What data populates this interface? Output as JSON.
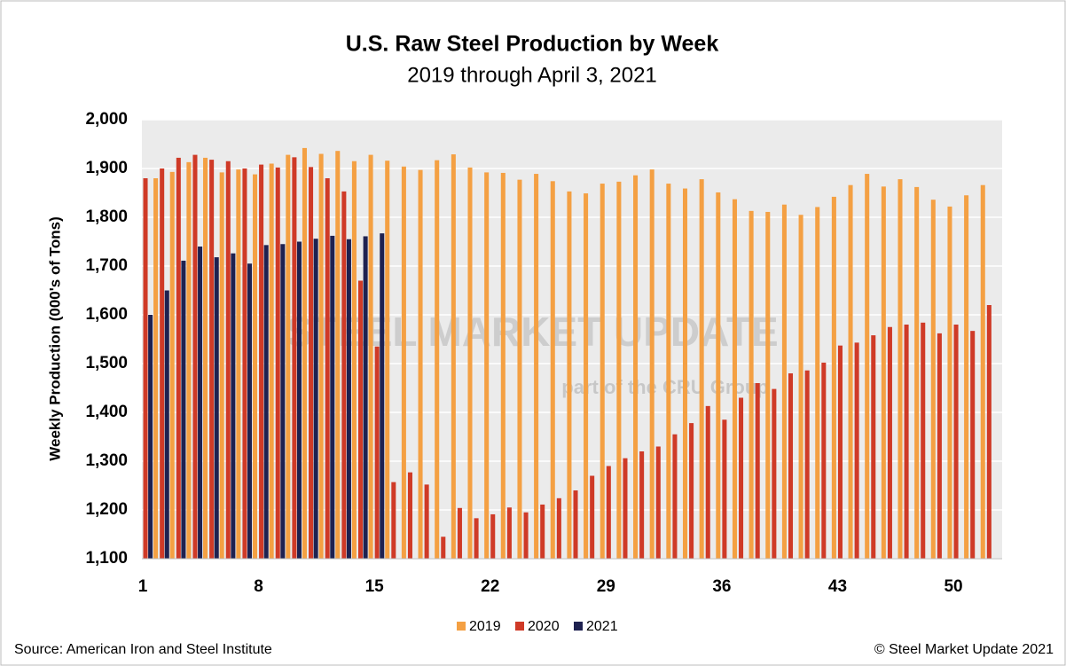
{
  "chart_data": {
    "type": "bar",
    "title": "U.S. Raw Steel Production by Week",
    "subtitle": "2019 through April 3, 2021",
    "y_label": "Weekly Production (000's of Tons)",
    "source": "Source: American Iron and Steel Institute",
    "copyright": "© Steel Market Update 2021",
    "watermark": [
      "STEEL MARKET UPDATE",
      "part of the CRU Group"
    ],
    "categories": [
      "1",
      null,
      null,
      null,
      null,
      null,
      null,
      "8",
      null,
      null,
      null,
      null,
      null,
      null,
      "15",
      null,
      null,
      null,
      null,
      null,
      null,
      "22",
      null,
      null,
      null,
      null,
      null,
      null,
      "29",
      null,
      null,
      null,
      null,
      null,
      null,
      "36",
      null,
      null,
      null,
      null,
      null,
      null,
      "43",
      null,
      null,
      null,
      null,
      null,
      null,
      "50",
      null,
      null
    ],
    "series": [
      {
        "name": "2019",
        "color": "#f4a043",
        "values": [
          1880,
          1893,
          1913,
          1922,
          1892,
          1898,
          1888,
          1910,
          1928,
          1942,
          1930,
          1936,
          1915,
          1928,
          1916,
          1904,
          1897,
          1917,
          1929,
          1902,
          1892,
          1891,
          1877,
          1889,
          1874,
          1853,
          1849,
          1869,
          1873,
          1886,
          1898,
          1869,
          1859,
          1878,
          1851,
          1837,
          1813,
          1811,
          1826,
          1805,
          1821,
          1842,
          1866,
          1889,
          1863,
          1878,
          1862,
          1836,
          1822,
          1845,
          1866,
          null
        ]
      },
      {
        "name": "2020",
        "color": "#cf3a27",
        "values": [
          1880,
          1900,
          1922,
          1928,
          1918,
          1915,
          1900,
          1908,
          1902,
          1923,
          1903,
          1880,
          1853,
          1670,
          1535,
          1257,
          1277,
          1252,
          1145,
          1204,
          1183,
          1191,
          1205,
          1195,
          1211,
          1224,
          1240,
          1270,
          1290,
          1306,
          1320,
          1330,
          1355,
          1378,
          1413,
          1385,
          1430,
          1460,
          1448,
          1480,
          1486,
          1502,
          1537,
          1543,
          1558,
          1575,
          1580,
          1584,
          1562,
          1580,
          1567,
          1620
        ]
      },
      {
        "name": "2021",
        "color": "#1e2150",
        "values": [
          1600,
          1650,
          1711,
          1740,
          1718,
          1726,
          1705,
          1743,
          1745,
          1750,
          1756,
          1762,
          1755,
          1761,
          1767,
          null,
          null,
          null,
          null,
          null,
          null,
          null,
          null,
          null,
          null,
          null,
          null,
          null,
          null,
          null,
          null,
          null,
          null,
          null,
          null,
          null,
          null,
          null,
          null,
          null,
          null,
          null,
          null,
          null,
          null,
          null,
          null,
          null,
          null,
          null,
          null,
          null
        ]
      }
    ],
    "ylim": [
      1100,
      2000
    ],
    "yticks": [
      {
        "value": 1100,
        "label": "1,100"
      },
      {
        "value": 1200,
        "label": "1,200"
      },
      {
        "value": 1300,
        "label": "1,300"
      },
      {
        "value": 1400,
        "label": "1,400"
      },
      {
        "value": 1500,
        "label": "1,500"
      },
      {
        "value": 1600,
        "label": "1,600"
      },
      {
        "value": 1700,
        "label": "1,700"
      },
      {
        "value": 1800,
        "label": "1,800"
      },
      {
        "value": 1900,
        "label": "1,900"
      },
      {
        "value": 2000,
        "label": "2,000"
      }
    ],
    "grid": true,
    "legend": "bottom"
  }
}
